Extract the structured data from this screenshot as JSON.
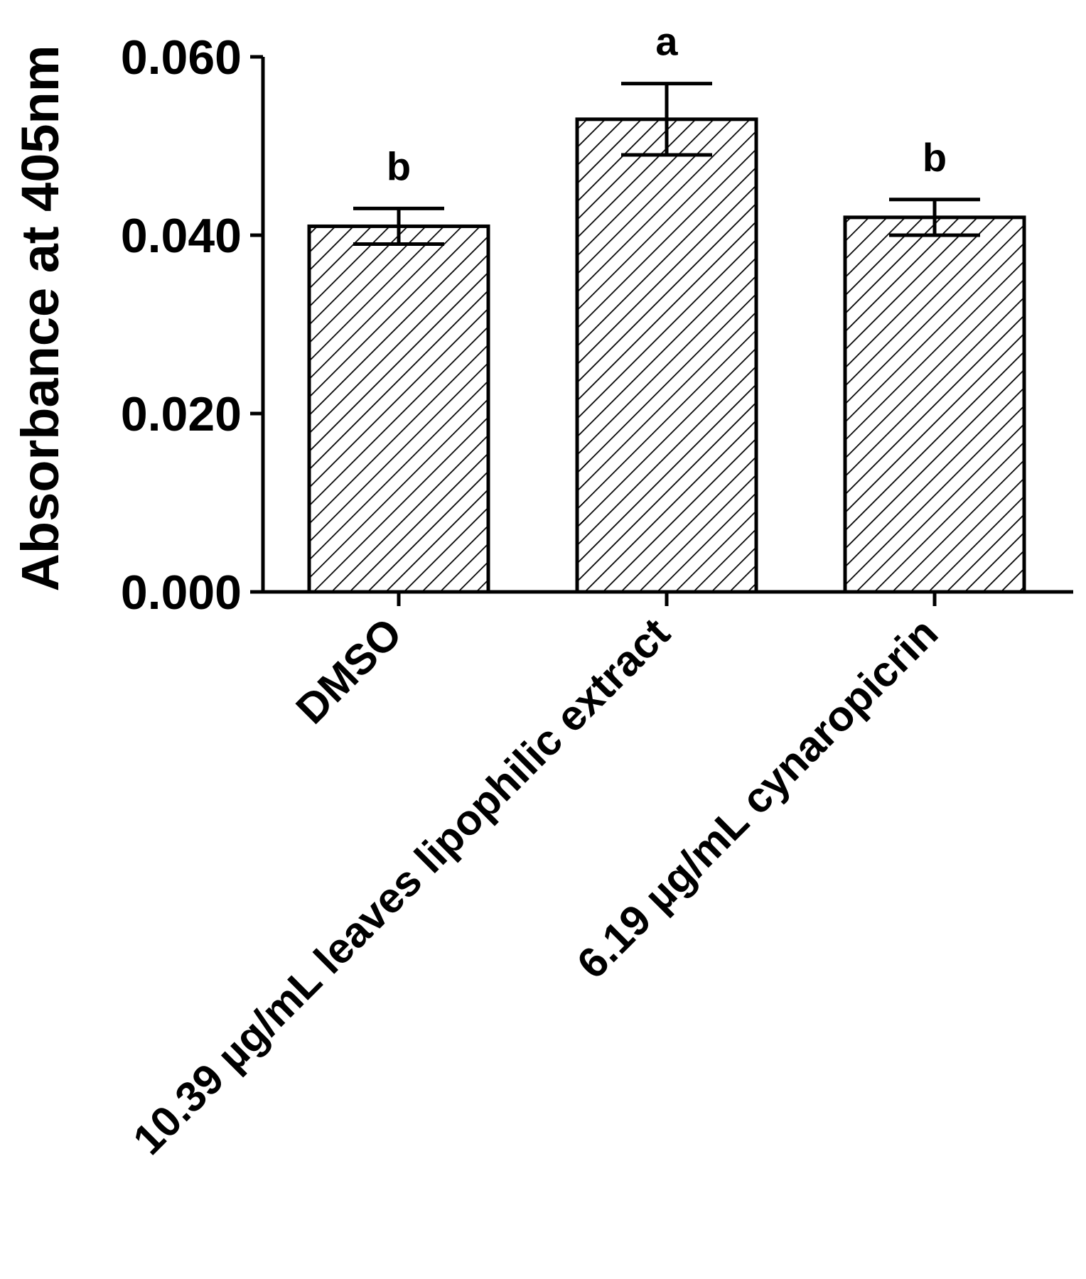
{
  "chart_data": {
    "type": "bar",
    "title": "",
    "xlabel": "",
    "ylabel": "Absorbance at 405nm",
    "categories": [
      "DMSO",
      "10.39 µg/mL leaves lipophilic extract",
      "6.19 µg/mL cynaropicrin"
    ],
    "values": [
      0.041,
      0.053,
      0.042
    ],
    "errors": [
      0.002,
      0.004,
      0.002
    ],
    "significance": [
      "b",
      "a",
      "b"
    ],
    "ylim": [
      0.0,
      0.06
    ],
    "yticks": [
      0.0,
      0.02,
      0.04,
      0.06
    ],
    "ytick_labels": [
      "0.000",
      "0.020",
      "0.040",
      "0.060"
    ],
    "bar_fill": "hatched",
    "colors": {
      "bar_stroke": "#000000",
      "hatch": "#000000",
      "background": "#ffffff"
    },
    "grid": false,
    "legend": "none"
  }
}
